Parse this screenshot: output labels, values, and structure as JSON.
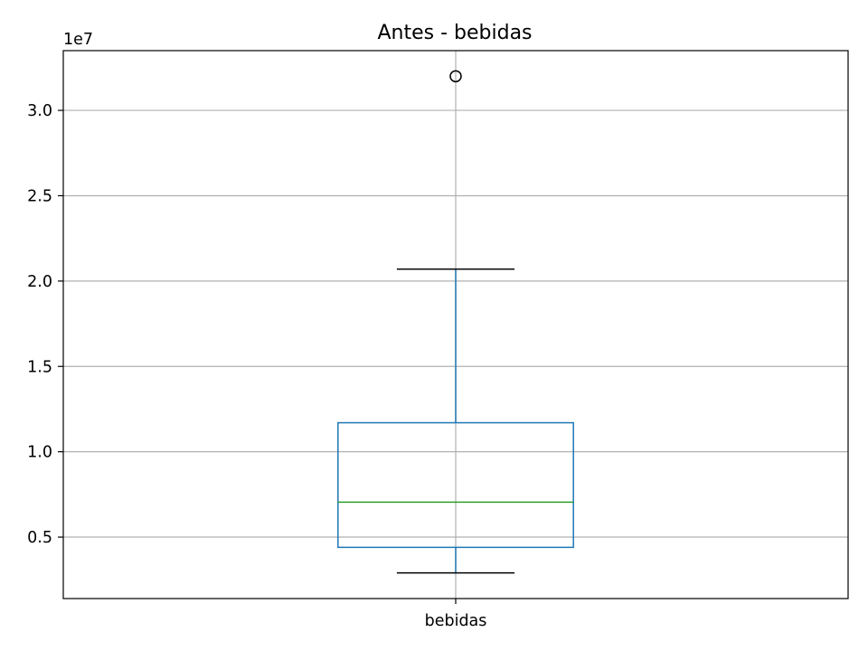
{
  "chart_data": {
    "type": "box",
    "title": "Antes - bebidas",
    "xlabel": "",
    "ylabel": "",
    "y_offset_label": "1e7",
    "y_multiplier": 10000000,
    "ylim": [
      1400000,
      33500000
    ],
    "y_ticks": [
      5000000,
      10000000,
      15000000,
      20000000,
      25000000,
      30000000
    ],
    "y_tick_labels": [
      "0.5",
      "1.0",
      "1.5",
      "2.0",
      "2.5",
      "3.0"
    ],
    "categories": [
      "bebidas"
    ],
    "boxes": [
      {
        "name": "bebidas",
        "whisker_low": 2900000,
        "q1": 4400000,
        "median": 7050000,
        "q3": 11700000,
        "whisker_high": 20700000,
        "outliers": [
          32000000
        ]
      }
    ],
    "grid": true,
    "colors": {
      "box": "#1f77b4",
      "median": "#2ca02c",
      "whisker_cap": "#000000",
      "outlier": "#000000",
      "grid": "#b0b0b0"
    }
  }
}
